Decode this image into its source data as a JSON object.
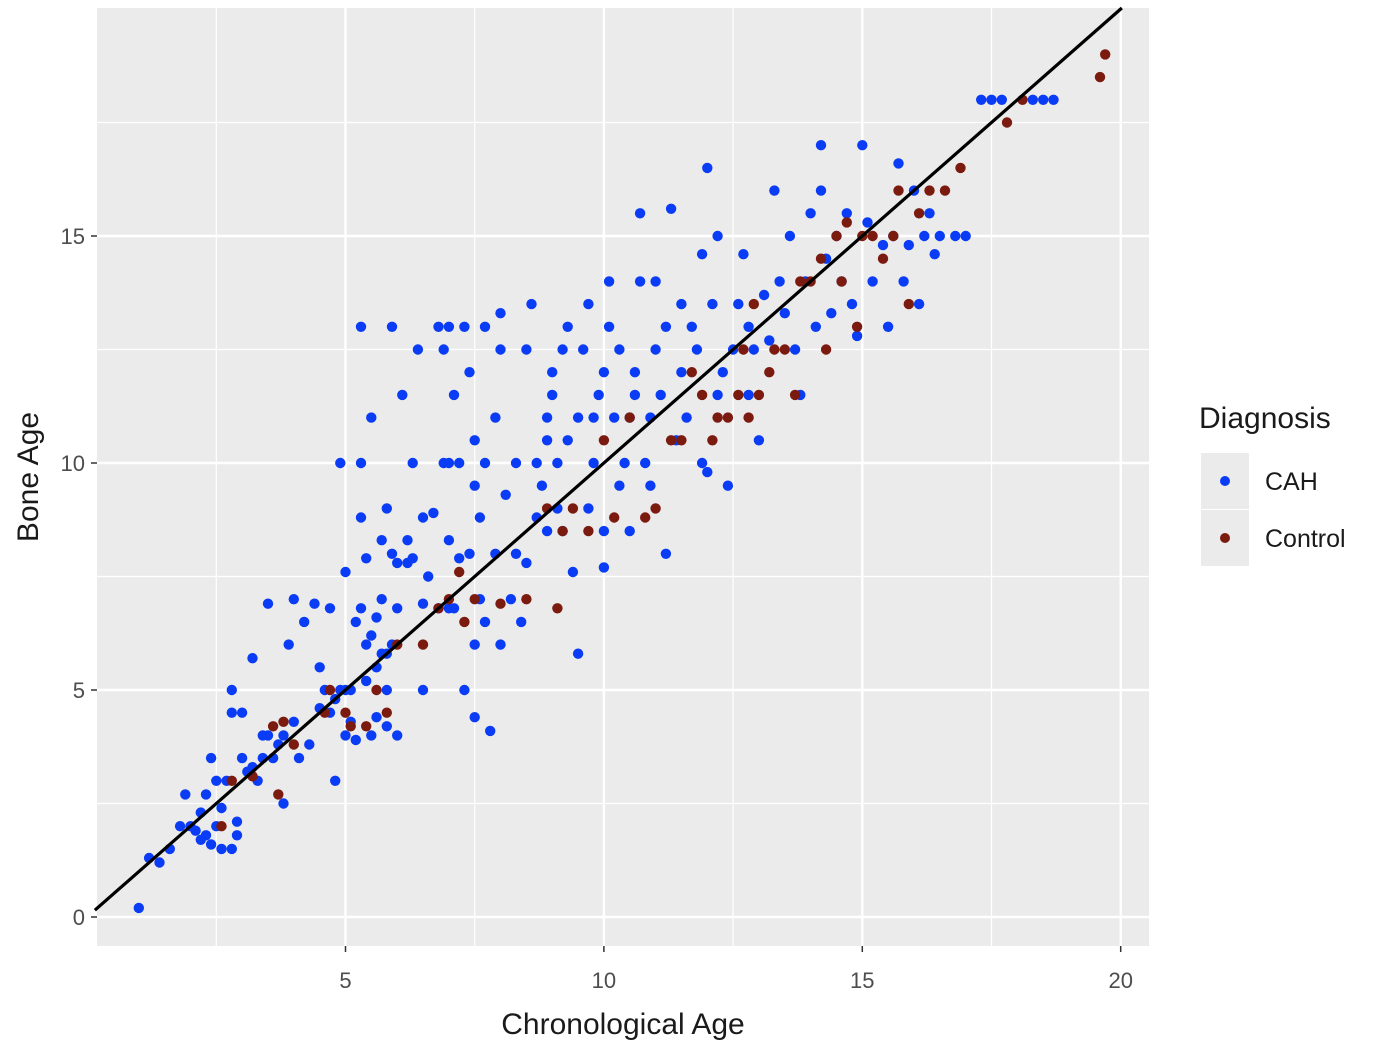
{
  "chart_data": {
    "type": "scatter",
    "title": "",
    "xlabel": "Chronological Age",
    "ylabel": "Bone Age",
    "xlim": [
      0.2,
      20.6
    ],
    "ylim": [
      -0.3,
      20
    ],
    "x_ticks": [
      5,
      10,
      15,
      20
    ],
    "y_ticks": [
      0,
      5,
      10,
      15
    ],
    "x_tick_labels": [
      "5",
      "10",
      "15",
      "20"
    ],
    "y_tick_labels": [
      "0",
      "5",
      "10",
      "15"
    ],
    "grid": true,
    "panel_background": "#ebebeb",
    "legend": {
      "title": "Diagnosis",
      "placement": "right",
      "entries": [
        "CAH",
        "Control"
      ]
    },
    "reference_line": {
      "slope": 1.0,
      "intercept": 0.0,
      "color": "#000000"
    },
    "series": [
      {
        "name": "CAH",
        "color": "#0a3cf5",
        "points": [
          [
            1.0,
            0.2
          ],
          [
            1.2,
            1.3
          ],
          [
            1.4,
            1.2
          ],
          [
            1.6,
            1.5
          ],
          [
            1.8,
            2.0
          ],
          [
            1.9,
            2.7
          ],
          [
            2.0,
            2.0
          ],
          [
            2.1,
            1.9
          ],
          [
            2.2,
            2.3
          ],
          [
            2.2,
            1.7
          ],
          [
            2.3,
            2.7
          ],
          [
            2.3,
            1.8
          ],
          [
            2.4,
            3.5
          ],
          [
            2.4,
            1.6
          ],
          [
            2.5,
            2.0
          ],
          [
            2.5,
            3.0
          ],
          [
            2.6,
            1.5
          ],
          [
            2.6,
            2.4
          ],
          [
            2.7,
            3.0
          ],
          [
            2.8,
            4.5
          ],
          [
            2.8,
            5.0
          ],
          [
            2.8,
            1.5
          ],
          [
            2.9,
            1.8
          ],
          [
            2.9,
            2.1
          ],
          [
            3.0,
            3.5
          ],
          [
            3.0,
            4.5
          ],
          [
            3.1,
            3.2
          ],
          [
            3.2,
            3.3
          ],
          [
            3.2,
            5.7
          ],
          [
            3.3,
            3.0
          ],
          [
            3.4,
            3.5
          ],
          [
            3.4,
            4.0
          ],
          [
            3.5,
            4.0
          ],
          [
            3.5,
            6.9
          ],
          [
            3.6,
            3.5
          ],
          [
            3.7,
            3.8
          ],
          [
            3.8,
            2.5
          ],
          [
            3.8,
            4.0
          ],
          [
            3.9,
            6.0
          ],
          [
            4.0,
            4.3
          ],
          [
            4.0,
            7.0
          ],
          [
            4.1,
            3.5
          ],
          [
            4.2,
            6.5
          ],
          [
            4.3,
            3.8
          ],
          [
            4.4,
            6.9
          ],
          [
            4.5,
            4.6
          ],
          [
            4.5,
            5.5
          ],
          [
            4.6,
            5.0
          ],
          [
            4.7,
            4.5
          ],
          [
            4.7,
            6.8
          ],
          [
            4.8,
            3.0
          ],
          [
            4.8,
            4.8
          ],
          [
            4.9,
            5.0
          ],
          [
            4.9,
            10.0
          ],
          [
            5.0,
            4.0
          ],
          [
            5.0,
            5.0
          ],
          [
            5.0,
            7.6
          ],
          [
            5.1,
            4.3
          ],
          [
            5.1,
            5.0
          ],
          [
            5.2,
            3.9
          ],
          [
            5.2,
            6.5
          ],
          [
            5.3,
            6.8
          ],
          [
            5.3,
            8.8
          ],
          [
            5.3,
            10.0
          ],
          [
            5.3,
            13.0
          ],
          [
            5.4,
            5.2
          ],
          [
            5.4,
            6.0
          ],
          [
            5.4,
            7.9
          ],
          [
            5.5,
            4.0
          ],
          [
            5.5,
            6.2
          ],
          [
            5.5,
            11.0
          ],
          [
            5.6,
            4.4
          ],
          [
            5.6,
            5.5
          ],
          [
            5.6,
            6.6
          ],
          [
            5.7,
            5.8
          ],
          [
            5.7,
            7.0
          ],
          [
            5.7,
            8.3
          ],
          [
            5.8,
            4.2
          ],
          [
            5.8,
            5.0
          ],
          [
            5.8,
            5.8
          ],
          [
            5.8,
            9.0
          ],
          [
            5.9,
            6.0
          ],
          [
            5.9,
            8.0
          ],
          [
            5.9,
            13.0
          ],
          [
            6.0,
            4.0
          ],
          [
            6.0,
            6.8
          ],
          [
            6.0,
            7.8
          ],
          [
            6.1,
            11.5
          ],
          [
            6.2,
            7.8
          ],
          [
            6.2,
            8.3
          ],
          [
            6.3,
            7.9
          ],
          [
            6.3,
            10.0
          ],
          [
            6.4,
            12.5
          ],
          [
            6.5,
            5.0
          ],
          [
            6.5,
            6.9
          ],
          [
            6.5,
            8.8
          ],
          [
            6.6,
            7.5
          ],
          [
            6.7,
            8.9
          ],
          [
            6.8,
            13.0
          ],
          [
            6.8,
            6.8
          ],
          [
            6.9,
            10.0
          ],
          [
            6.9,
            12.5
          ],
          [
            7.0,
            6.8
          ],
          [
            7.0,
            8.3
          ],
          [
            7.0,
            10.0
          ],
          [
            7.0,
            13.0
          ],
          [
            7.1,
            11.5
          ],
          [
            7.1,
            6.8
          ],
          [
            7.2,
            7.9
          ],
          [
            7.2,
            10.0
          ],
          [
            7.3,
            5.0
          ],
          [
            7.3,
            13.0
          ],
          [
            7.4,
            8.0
          ],
          [
            7.4,
            12.0
          ],
          [
            7.5,
            4.4
          ],
          [
            7.5,
            6.0
          ],
          [
            7.5,
            9.5
          ],
          [
            7.5,
            10.5
          ],
          [
            7.6,
            7.0
          ],
          [
            7.6,
            8.8
          ],
          [
            7.7,
            6.5
          ],
          [
            7.7,
            10.0
          ],
          [
            7.7,
            13.0
          ],
          [
            7.8,
            4.1
          ],
          [
            7.9,
            8.0
          ],
          [
            7.9,
            11.0
          ],
          [
            8.0,
            6.0
          ],
          [
            8.0,
            12.5
          ],
          [
            8.0,
            13.3
          ],
          [
            8.1,
            9.3
          ],
          [
            8.2,
            7.0
          ],
          [
            8.3,
            8.0
          ],
          [
            8.3,
            10.0
          ],
          [
            8.4,
            6.5
          ],
          [
            8.5,
            7.8
          ],
          [
            8.5,
            12.5
          ],
          [
            8.6,
            13.5
          ],
          [
            8.7,
            8.8
          ],
          [
            8.7,
            10.0
          ],
          [
            8.8,
            9.5
          ],
          [
            8.9,
            8.5
          ],
          [
            8.9,
            10.5
          ],
          [
            8.9,
            11.0
          ],
          [
            9.0,
            12.0
          ],
          [
            9.0,
            11.5
          ],
          [
            9.1,
            9.0
          ],
          [
            9.1,
            10.0
          ],
          [
            9.2,
            12.5
          ],
          [
            9.2,
            8.5
          ],
          [
            9.3,
            13.0
          ],
          [
            9.3,
            10.5
          ],
          [
            9.4,
            7.6
          ],
          [
            9.5,
            5.8
          ],
          [
            9.5,
            11.0
          ],
          [
            9.6,
            12.5
          ],
          [
            9.7,
            9.0
          ],
          [
            9.7,
            13.5
          ],
          [
            9.8,
            10.0
          ],
          [
            9.8,
            11.0
          ],
          [
            9.9,
            11.5
          ],
          [
            10.0,
            8.5
          ],
          [
            10.0,
            12.0
          ],
          [
            10.0,
            7.7
          ],
          [
            10.1,
            13.0
          ],
          [
            10.1,
            14.0
          ],
          [
            10.2,
            11.0
          ],
          [
            10.3,
            9.5
          ],
          [
            10.3,
            12.5
          ],
          [
            10.4,
            10.0
          ],
          [
            10.5,
            11.0
          ],
          [
            10.5,
            8.5
          ],
          [
            10.6,
            11.5
          ],
          [
            10.6,
            12.0
          ],
          [
            10.7,
            14.0
          ],
          [
            10.7,
            15.5
          ],
          [
            10.8,
            10.0
          ],
          [
            10.9,
            11.0
          ],
          [
            10.9,
            9.5
          ],
          [
            11.0,
            12.5
          ],
          [
            11.0,
            14.0
          ],
          [
            11.1,
            11.5
          ],
          [
            11.2,
            8.0
          ],
          [
            11.2,
            13.0
          ],
          [
            11.3,
            15.6
          ],
          [
            11.4,
            10.5
          ],
          [
            11.5,
            12.0
          ],
          [
            11.5,
            13.5
          ],
          [
            11.6,
            11.0
          ],
          [
            11.7,
            13.0
          ],
          [
            11.8,
            12.5
          ],
          [
            11.9,
            10.0
          ],
          [
            11.9,
            14.6
          ],
          [
            12.0,
            16.5
          ],
          [
            12.0,
            9.8
          ],
          [
            12.1,
            13.5
          ],
          [
            12.2,
            15.0
          ],
          [
            12.2,
            11.5
          ],
          [
            12.3,
            12.0
          ],
          [
            12.4,
            9.5
          ],
          [
            12.5,
            12.5
          ],
          [
            12.6,
            13.5
          ],
          [
            12.7,
            14.6
          ],
          [
            12.8,
            13.0
          ],
          [
            12.8,
            11.5
          ],
          [
            12.9,
            12.5
          ],
          [
            13.0,
            10.5
          ],
          [
            13.1,
            13.7
          ],
          [
            13.2,
            12.7
          ],
          [
            13.3,
            16.0
          ],
          [
            13.4,
            14.0
          ],
          [
            13.5,
            13.3
          ],
          [
            13.6,
            15.0
          ],
          [
            13.7,
            12.5
          ],
          [
            13.8,
            11.5
          ],
          [
            13.9,
            14.0
          ],
          [
            14.0,
            15.5
          ],
          [
            14.1,
            13.0
          ],
          [
            14.2,
            16.0
          ],
          [
            14.2,
            17.0
          ],
          [
            14.3,
            14.5
          ],
          [
            14.4,
            13.3
          ],
          [
            14.5,
            15.0
          ],
          [
            14.6,
            14.0
          ],
          [
            14.7,
            15.5
          ],
          [
            14.8,
            13.5
          ],
          [
            14.9,
            12.8
          ],
          [
            15.0,
            17.0
          ],
          [
            15.1,
            15.3
          ],
          [
            15.2,
            14.0
          ],
          [
            15.4,
            14.8
          ],
          [
            15.5,
            13.0
          ],
          [
            15.6,
            15.0
          ],
          [
            15.7,
            16.6
          ],
          [
            15.8,
            14.0
          ],
          [
            15.9,
            14.8
          ],
          [
            16.0,
            16.0
          ],
          [
            16.1,
            13.5
          ],
          [
            16.2,
            15.0
          ],
          [
            16.3,
            15.5
          ],
          [
            16.4,
            14.6
          ],
          [
            16.5,
            15.0
          ],
          [
            16.8,
            15.0
          ],
          [
            17.0,
            15.0
          ],
          [
            17.3,
            18.0
          ],
          [
            17.5,
            18.0
          ],
          [
            17.7,
            18.0
          ],
          [
            18.3,
            18.0
          ],
          [
            18.5,
            18.0
          ],
          [
            18.7,
            18.0
          ]
        ]
      },
      {
        "name": "Control",
        "color": "#7b1a0e",
        "points": [
          [
            2.6,
            2.0
          ],
          [
            2.8,
            3.0
          ],
          [
            3.2,
            3.1
          ],
          [
            3.6,
            4.2
          ],
          [
            3.7,
            2.7
          ],
          [
            3.8,
            4.3
          ],
          [
            4.0,
            3.8
          ],
          [
            4.6,
            4.5
          ],
          [
            4.7,
            5.0
          ],
          [
            5.0,
            4.5
          ],
          [
            5.1,
            4.2
          ],
          [
            5.4,
            4.2
          ],
          [
            5.6,
            5.0
          ],
          [
            5.8,
            4.5
          ],
          [
            6.0,
            6.0
          ],
          [
            6.5,
            6.0
          ],
          [
            6.8,
            6.8
          ],
          [
            7.0,
            7.0
          ],
          [
            7.2,
            7.6
          ],
          [
            7.3,
            6.5
          ],
          [
            7.5,
            7.0
          ],
          [
            8.0,
            6.9
          ],
          [
            8.5,
            7.0
          ],
          [
            8.9,
            9.0
          ],
          [
            9.1,
            6.8
          ],
          [
            9.2,
            8.5
          ],
          [
            9.4,
            9.0
          ],
          [
            9.7,
            8.5
          ],
          [
            10.0,
            10.5
          ],
          [
            10.2,
            8.8
          ],
          [
            10.5,
            11.0
          ],
          [
            10.8,
            8.8
          ],
          [
            11.0,
            9.0
          ],
          [
            11.3,
            10.5
          ],
          [
            11.5,
            10.5
          ],
          [
            11.7,
            12.0
          ],
          [
            11.9,
            11.5
          ],
          [
            12.1,
            10.5
          ],
          [
            12.2,
            11.0
          ],
          [
            12.4,
            11.0
          ],
          [
            12.6,
            11.5
          ],
          [
            12.7,
            12.5
          ],
          [
            12.8,
            11.0
          ],
          [
            12.9,
            13.5
          ],
          [
            13.0,
            11.5
          ],
          [
            13.2,
            12.0
          ],
          [
            13.3,
            12.5
          ],
          [
            13.5,
            12.5
          ],
          [
            13.7,
            11.5
          ],
          [
            13.8,
            14.0
          ],
          [
            14.0,
            14.0
          ],
          [
            14.2,
            14.5
          ],
          [
            14.3,
            12.5
          ],
          [
            14.5,
            15.0
          ],
          [
            14.6,
            14.0
          ],
          [
            14.7,
            15.3
          ],
          [
            14.9,
            13.0
          ],
          [
            15.0,
            15.0
          ],
          [
            15.2,
            15.0
          ],
          [
            15.4,
            14.5
          ],
          [
            15.6,
            15.0
          ],
          [
            15.7,
            16.0
          ],
          [
            15.9,
            13.5
          ],
          [
            16.1,
            15.5
          ],
          [
            16.3,
            16.0
          ],
          [
            16.6,
            16.0
          ],
          [
            16.9,
            16.5
          ],
          [
            17.8,
            17.5
          ],
          [
            18.1,
            18.0
          ],
          [
            19.6,
            18.5
          ],
          [
            19.7,
            19.0
          ]
        ]
      }
    ]
  }
}
